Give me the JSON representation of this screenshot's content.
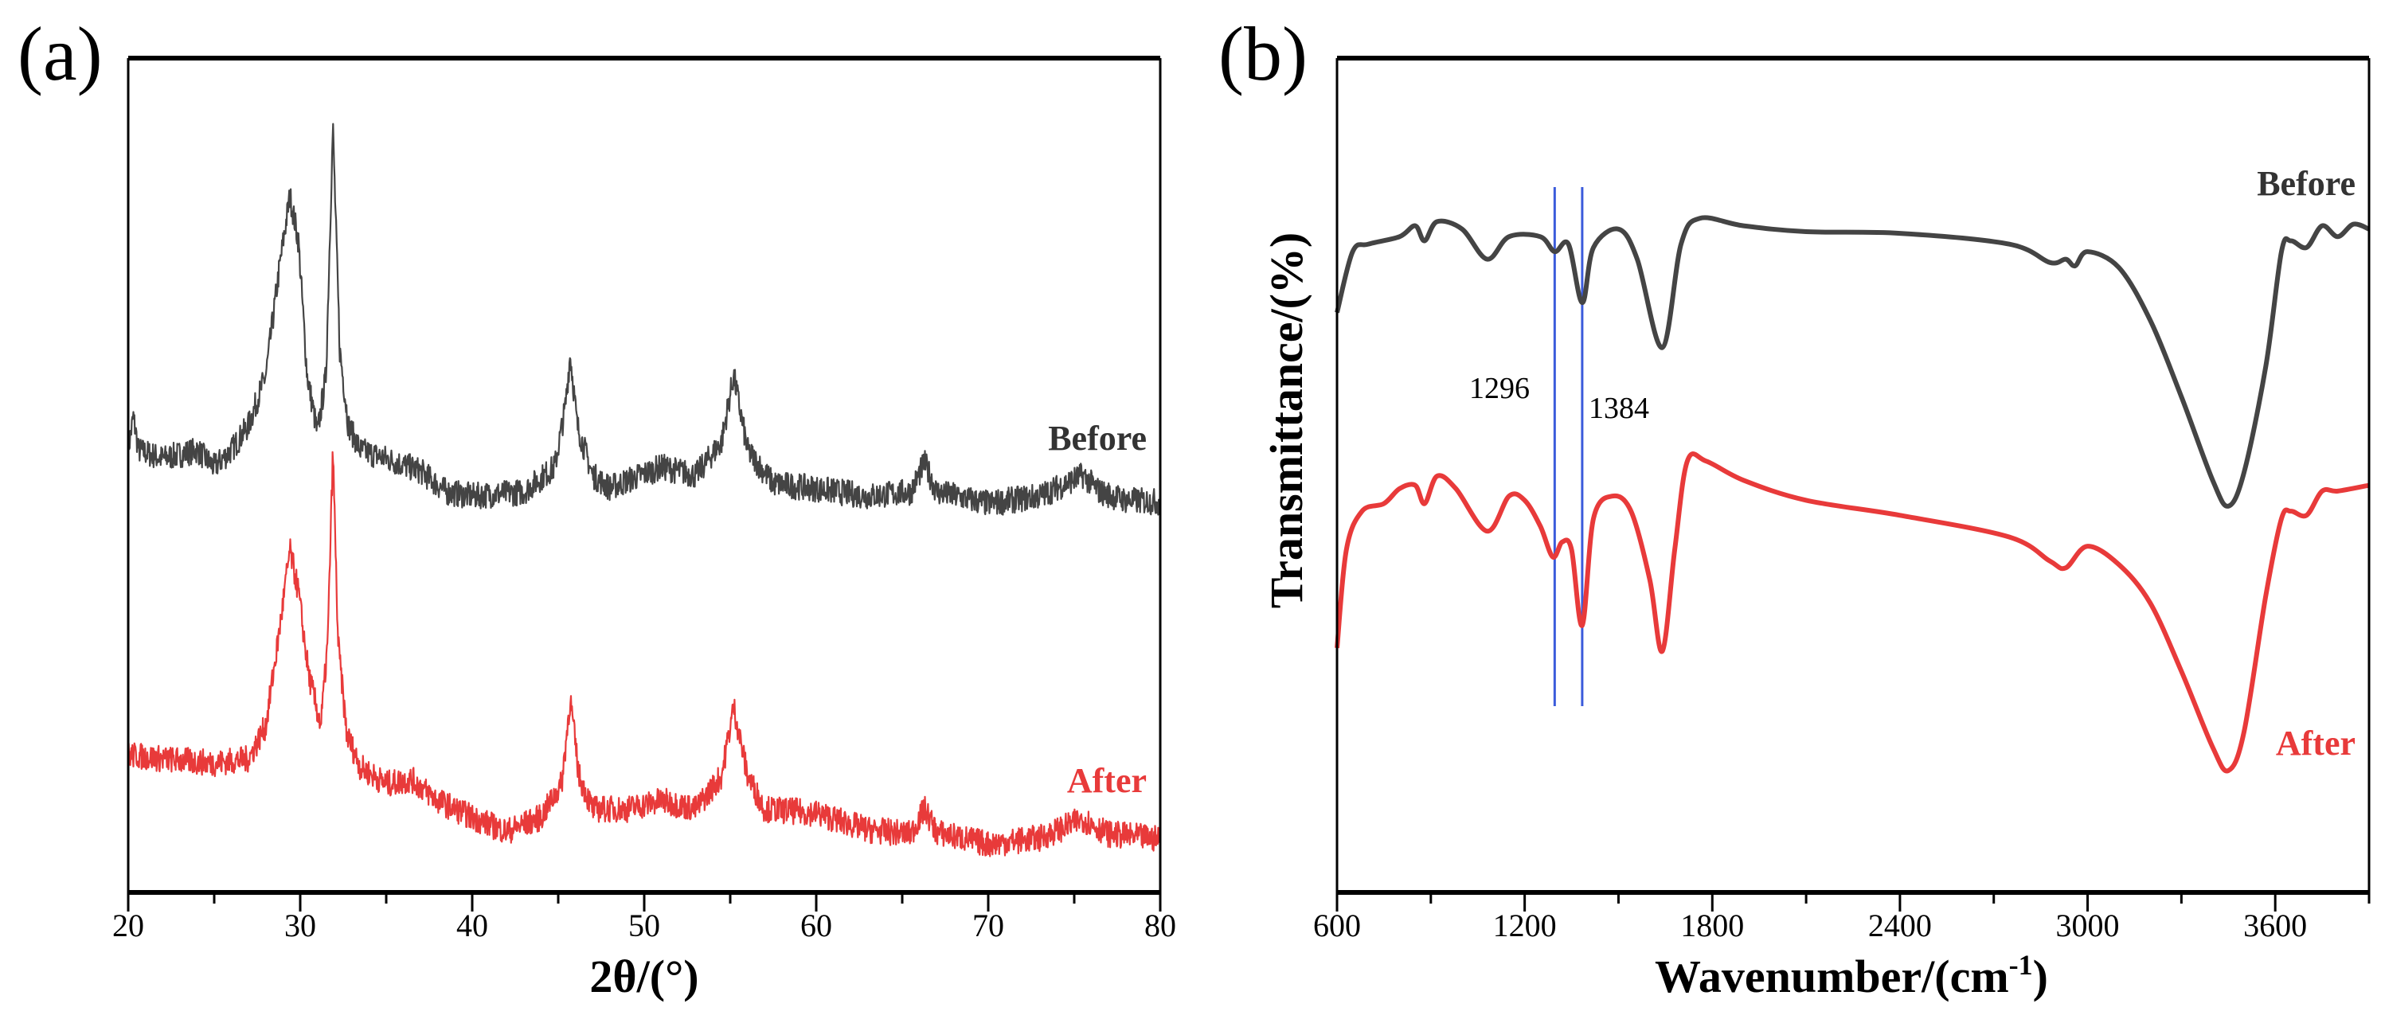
{
  "colors": {
    "before": "#444444",
    "after": "#e83a3a",
    "marker": "#3b5bdb"
  },
  "chart_data": [
    {
      "type": "line",
      "panel_label": "(a)",
      "title": "",
      "xlabel": "2θ/(°)",
      "ylabel": "",
      "xlim": [
        20,
        80
      ],
      "ylim": [
        0,
        100
      ],
      "xticks": [
        "20",
        "30",
        "40",
        "50",
        "60",
        "70",
        "80"
      ],
      "grid": false,
      "series": [
        {
          "name": "Before",
          "color": "#444444",
          "noise": 1.6,
          "points": [
            [
              20,
              53
            ],
            [
              20.3,
              57
            ],
            [
              20.6,
              53
            ],
            [
              22,
              52
            ],
            [
              24,
              53
            ],
            [
              25,
              51
            ],
            [
              26,
              53
            ],
            [
              27,
              56
            ],
            [
              28,
              62
            ],
            [
              28.8,
              75
            ],
            [
              29.4,
              83.5
            ],
            [
              29.9,
              78
            ],
            [
              30.4,
              62
            ],
            [
              31,
              55
            ],
            [
              31.5,
              62
            ],
            [
              31.9,
              91.8
            ],
            [
              32.3,
              65
            ],
            [
              32.8,
              56
            ],
            [
              33.5,
              53
            ],
            [
              35,
              52
            ],
            [
              37,
              50.5
            ],
            [
              38.5,
              48
            ],
            [
              40,
              47.5
            ],
            [
              43,
              48
            ],
            [
              44.8,
              51
            ],
            [
              45.4,
              58
            ],
            [
              45.7,
              64.5
            ],
            [
              46.1,
              56
            ],
            [
              47,
              50
            ],
            [
              48,
              48.5
            ],
            [
              51,
              51
            ],
            [
              53,
              50
            ],
            [
              54.5,
              54
            ],
            [
              55.2,
              62
            ],
            [
              56,
              53
            ],
            [
              57.5,
              49
            ],
            [
              60,
              48.4
            ],
            [
              63,
              47.5
            ],
            [
              65.5,
              48
            ],
            [
              66.3,
              51.5
            ],
            [
              67,
              48
            ],
            [
              70,
              46.6
            ],
            [
              73,
              47.5
            ],
            [
              75.5,
              50
            ],
            [
              76.5,
              48
            ],
            [
              78,
              47
            ],
            [
              80,
              46.8
            ]
          ]
        },
        {
          "name": "After",
          "color": "#e83a3a",
          "noise": 1.6,
          "points": [
            [
              20,
              16.5
            ],
            [
              22,
              16
            ],
            [
              25,
              15.5
            ],
            [
              27,
              16
            ],
            [
              28,
              20
            ],
            [
              28.7,
              30
            ],
            [
              29.4,
              41
            ],
            [
              29.9,
              36
            ],
            [
              30.5,
              26
            ],
            [
              31.2,
              20
            ],
            [
              31.6,
              30
            ],
            [
              31.9,
              53
            ],
            [
              32.2,
              30
            ],
            [
              32.7,
              19
            ],
            [
              33.5,
              15
            ],
            [
              35,
              13
            ],
            [
              36.5,
              13.5
            ],
            [
              38,
              11
            ],
            [
              40,
              9
            ],
            [
              42,
              7.3
            ],
            [
              44,
              9
            ],
            [
              45.2,
              13
            ],
            [
              45.7,
              23.2
            ],
            [
              46.2,
              14
            ],
            [
              47,
              10
            ],
            [
              49,
              10
            ],
            [
              51,
              11
            ],
            [
              53,
              10
            ],
            [
              54.5,
              14
            ],
            [
              55.2,
              22.3
            ],
            [
              56,
              14
            ],
            [
              57,
              10
            ],
            [
              60,
              9.5
            ],
            [
              63,
              7.5
            ],
            [
              65.5,
              7
            ],
            [
              66.3,
              10
            ],
            [
              67,
              7.2
            ],
            [
              70,
              5.8
            ],
            [
              73,
              6.5
            ],
            [
              75.5,
              8.8
            ],
            [
              77,
              7
            ],
            [
              80,
              6.4
            ]
          ]
        }
      ]
    },
    {
      "type": "line",
      "panel_label": "(b)",
      "title": "",
      "xlabel": "Wavenumber/(cm",
      "xlabel_sup": "-1",
      "xlabel_end": ")",
      "ylabel": "Transmittance/(%)",
      "xlim": [
        600,
        3900
      ],
      "ylim": [
        0,
        100
      ],
      "xticks": [
        "600",
        "1200",
        "1800",
        "2400",
        "3000",
        "3600"
      ],
      "grid": false,
      "markers": [
        {
          "x": 1296,
          "label": "1296"
        },
        {
          "x": 1384,
          "label": "1384"
        }
      ],
      "series": [
        {
          "name": "Before",
          "color": "#444444",
          "points": [
            [
              600,
              69.5
            ],
            [
              650,
              76.8
            ],
            [
              700,
              77.7
            ],
            [
              800,
              78.6
            ],
            [
              850,
              79.9
            ],
            [
              880,
              78.1
            ],
            [
              920,
              80.4
            ],
            [
              1000,
              79.5
            ],
            [
              1080,
              75.9
            ],
            [
              1150,
              78.6
            ],
            [
              1250,
              78.6
            ],
            [
              1296,
              76.8
            ],
            [
              1340,
              77.7
            ],
            [
              1384,
              70.7
            ],
            [
              1420,
              77.3
            ],
            [
              1500,
              79.5
            ],
            [
              1560,
              75.9
            ],
            [
              1640,
              65.3
            ],
            [
              1700,
              77.7
            ],
            [
              1760,
              80.8
            ],
            [
              1900,
              79.9
            ],
            [
              2100,
              79.2
            ],
            [
              2400,
              79.0
            ],
            [
              2750,
              77.7
            ],
            [
              2880,
              75.5
            ],
            [
              2930,
              75.9
            ],
            [
              2960,
              75.1
            ],
            [
              3000,
              76.8
            ],
            [
              3100,
              74.9
            ],
            [
              3200,
              68.6
            ],
            [
              3300,
              59.4
            ],
            [
              3400,
              49.4
            ],
            [
              3450,
              46.3
            ],
            [
              3500,
              50.3
            ],
            [
              3570,
              63.1
            ],
            [
              3620,
              76.8
            ],
            [
              3650,
              78.1
            ],
            [
              3700,
              77.3
            ],
            [
              3750,
              79.9
            ],
            [
              3800,
              78.6
            ],
            [
              3850,
              80.1
            ],
            [
              3900,
              79.5
            ]
          ]
        },
        {
          "name": "After",
          "color": "#e83a3a",
          "points": [
            [
              600,
              29.3
            ],
            [
              630,
              41.1
            ],
            [
              680,
              45.7
            ],
            [
              750,
              46.6
            ],
            [
              800,
              48.4
            ],
            [
              850,
              48.8
            ],
            [
              880,
              46.6
            ],
            [
              920,
              49.9
            ],
            [
              980,
              48.4
            ],
            [
              1080,
              43.3
            ],
            [
              1150,
              47.5
            ],
            [
              1200,
              47.0
            ],
            [
              1250,
              43.9
            ],
            [
              1290,
              40.2
            ],
            [
              1320,
              42.0
            ],
            [
              1350,
              41.1
            ],
            [
              1384,
              32.0
            ],
            [
              1420,
              44.8
            ],
            [
              1480,
              47.5
            ],
            [
              1540,
              45.7
            ],
            [
              1600,
              37.5
            ],
            [
              1640,
              28.9
            ],
            [
              1680,
              41.1
            ],
            [
              1720,
              51.7
            ],
            [
              1780,
              51.7
            ],
            [
              1900,
              49.4
            ],
            [
              2100,
              47.0
            ],
            [
              2400,
              45.2
            ],
            [
              2750,
              42.6
            ],
            [
              2880,
              39.7
            ],
            [
              2930,
              38.9
            ],
            [
              3000,
              41.5
            ],
            [
              3100,
              39.3
            ],
            [
              3200,
              34.7
            ],
            [
              3300,
              26.5
            ],
            [
              3400,
              17.4
            ],
            [
              3450,
              14.6
            ],
            [
              3500,
              19.2
            ],
            [
              3570,
              35.6
            ],
            [
              3620,
              44.8
            ],
            [
              3650,
              45.7
            ],
            [
              3700,
              45.2
            ],
            [
              3750,
              48.1
            ],
            [
              3800,
              48.1
            ],
            [
              3900,
              48.8
            ]
          ]
        }
      ]
    }
  ]
}
